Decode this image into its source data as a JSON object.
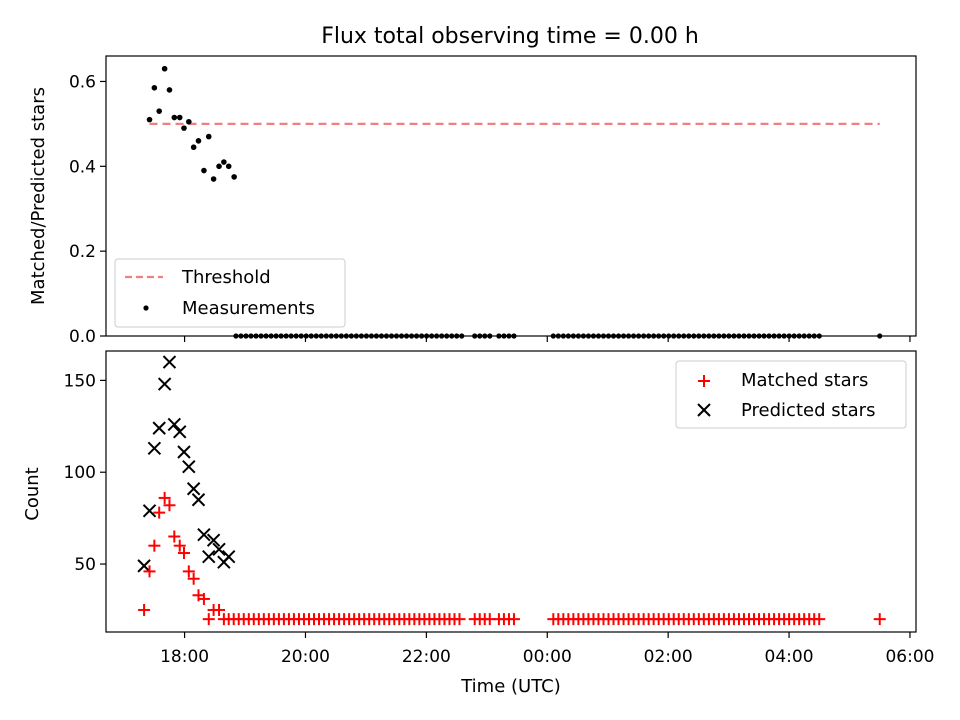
{
  "chart_data": [
    {
      "type": "scatter",
      "title": "Flux total observing time = 0.00 h",
      "xlabel": "",
      "ylabel": "Matched/Predicted stars",
      "x_unit": "hours (UTC clock, continuing past midnight)",
      "xlim": [
        16.7,
        30.1
      ],
      "ylim": [
        0,
        0.66
      ],
      "yticks": [
        "0.0",
        "0.2",
        "0.4",
        "0.6"
      ],
      "xticks": [
        "18:00",
        "20:00",
        "22:00",
        "00:00",
        "02:00",
        "04:00",
        "06:00"
      ],
      "legend_position": "lower-left",
      "series": [
        {
          "name": "Threshold",
          "kind": "dashed-line",
          "color": "#f08080",
          "x": [
            17.42,
            29.5
          ],
          "y": [
            0.5,
            0.5
          ]
        },
        {
          "name": "Measurements",
          "kind": "points",
          "color": "#000000",
          "x": [
            17.42,
            17.5,
            17.58,
            17.67,
            17.75,
            17.83,
            17.92,
            17.99,
            18.07,
            18.15,
            18.23,
            18.32,
            18.4,
            18.48,
            18.57,
            18.65,
            18.73,
            18.82
          ],
          "y": [
            0.51,
            0.585,
            0.53,
            0.63,
            0.58,
            0.515,
            0.515,
            0.49,
            0.505,
            0.445,
            0.46,
            0.39,
            0.47,
            0.37,
            0.4,
            0.41,
            0.4,
            0.375
          ]
        }
      ],
      "zero_runs": [
        {
          "start": 18.85,
          "end": 22.6,
          "step": 0.083
        },
        {
          "start": 22.8,
          "end": 23.1,
          "step": 0.083
        },
        {
          "start": 23.2,
          "end": 23.5,
          "step": 0.083
        },
        {
          "start": 24.1,
          "end": 28.55,
          "step": 0.083
        }
      ],
      "zero_points": [
        29.5
      ]
    },
    {
      "type": "scatter",
      "title": "",
      "xlabel": "Time (UTC)",
      "ylabel": "Count",
      "x_unit": "hours (UTC clock, continuing past midnight)",
      "xlim": [
        16.7,
        30.1
      ],
      "ylim": [
        13,
        166
      ],
      "yticks": [
        "50",
        "100",
        "150"
      ],
      "xticks": [
        "18:00",
        "20:00",
        "22:00",
        "00:00",
        "02:00",
        "04:00",
        "06:00"
      ],
      "legend_position": "upper-right",
      "series": [
        {
          "name": "Matched stars",
          "marker": "plus",
          "color": "#ff0000",
          "x": [
            17.33,
            17.42,
            17.5,
            17.58,
            17.67,
            17.75,
            17.83,
            17.92,
            17.99,
            18.07,
            18.15,
            18.23,
            18.32,
            18.4,
            18.48,
            18.57,
            18.65
          ],
          "y": [
            25,
            46,
            60,
            78,
            86,
            82,
            65,
            60,
            56,
            46,
            42,
            33,
            31,
            20,
            25,
            25,
            20
          ]
        },
        {
          "name": "Predicted stars",
          "marker": "x",
          "color": "#000000",
          "x": [
            17.33,
            17.42,
            17.5,
            17.58,
            17.67,
            17.75,
            17.83,
            17.92,
            17.99,
            18.07,
            18.15,
            18.23,
            18.32,
            18.4,
            18.48,
            18.57,
            18.65,
            18.73
          ],
          "y": [
            49,
            79,
            113,
            124,
            148,
            160,
            126,
            122,
            111,
            103,
            91,
            85,
            66,
            54,
            63,
            58,
            51,
            54
          ]
        }
      ],
      "flat_runs": [
        {
          "start": 18.73,
          "end": 22.6,
          "step": 0.083,
          "value": 20
        },
        {
          "start": 22.8,
          "end": 23.1,
          "step": 0.083,
          "value": 20
        },
        {
          "start": 23.2,
          "end": 23.5,
          "step": 0.083,
          "value": 20
        },
        {
          "start": 24.1,
          "end": 28.55,
          "step": 0.083,
          "value": 20
        }
      ],
      "flat_points": [
        {
          "x": 29.5,
          "y": 20
        }
      ]
    }
  ]
}
